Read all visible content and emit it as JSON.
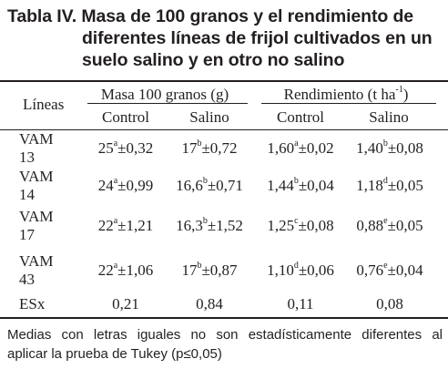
{
  "title": {
    "line1": "Tabla IV. Masa de 100 granos y el rendimiento de",
    "line2": "diferentes líneas de frijol cultivados en un",
    "line3": "suelo salino y en otro no salino"
  },
  "header": {
    "lineas": "Líneas",
    "masa": "Masa 100 granos (g)",
    "rend_prefix": "Rendimiento (t ha",
    "rend_sup": "-1",
    "rend_suffix": ")",
    "control": "Control",
    "salino": "Salino"
  },
  "rows": [
    {
      "name1": "VAM",
      "name2": "13",
      "m_control": {
        "v": "25",
        "s": "a",
        "e": "±0,32"
      },
      "m_salino": {
        "v": "17",
        "s": "b",
        "e": "±0,72"
      },
      "r_control": {
        "v": "1,60",
        "s": "a",
        "e": "±0,02"
      },
      "r_salino": {
        "v": "1,40",
        "s": "b",
        "e": "±0,08"
      }
    },
    {
      "name1": "VAM",
      "name2": "14",
      "m_control": {
        "v": "24",
        "s": "a",
        "e": "±0,99"
      },
      "m_salino": {
        "v": "16,6",
        "s": "b",
        "e": "±0,71"
      },
      "r_control": {
        "v": "1,44",
        "s": "b",
        "e": "±0,04"
      },
      "r_salino": {
        "v": "1,18",
        "s": "d",
        "e": "±0,05"
      }
    },
    {
      "name1": "VAM",
      "name2": "17",
      "m_control": {
        "v": "22",
        "s": "a",
        "e": "±1,21"
      },
      "m_salino": {
        "v": "16,3",
        "s": "b",
        "e": "±1,52"
      },
      "r_control": {
        "v": "1,25",
        "s": "c",
        "e": "±0,08"
      },
      "r_salino": {
        "v": "0,88",
        "s": "e",
        "e": "±0,05"
      }
    },
    {
      "name1": "VAM",
      "name2": "43",
      "m_control": {
        "v": "22",
        "s": "a",
        "e": "±1,06"
      },
      "m_salino": {
        "v": "17",
        "s": "b",
        "e": "±0,87"
      },
      "r_control": {
        "v": "1,10",
        "s": "d",
        "e": "±0,06"
      },
      "r_salino": {
        "v": "0,76",
        "s": "e",
        "e": "±0,04"
      }
    }
  ],
  "esx": {
    "label": "ESx",
    "m_control": "0,21",
    "m_salino": "0,84",
    "r_control": "0,11",
    "r_salino": "0,08"
  },
  "footnote": {
    "line1": "Medias con letras iguales no son estadísticamente diferentes al",
    "line2": "aplicar la prueba de Tukey (p≤0,05)"
  }
}
